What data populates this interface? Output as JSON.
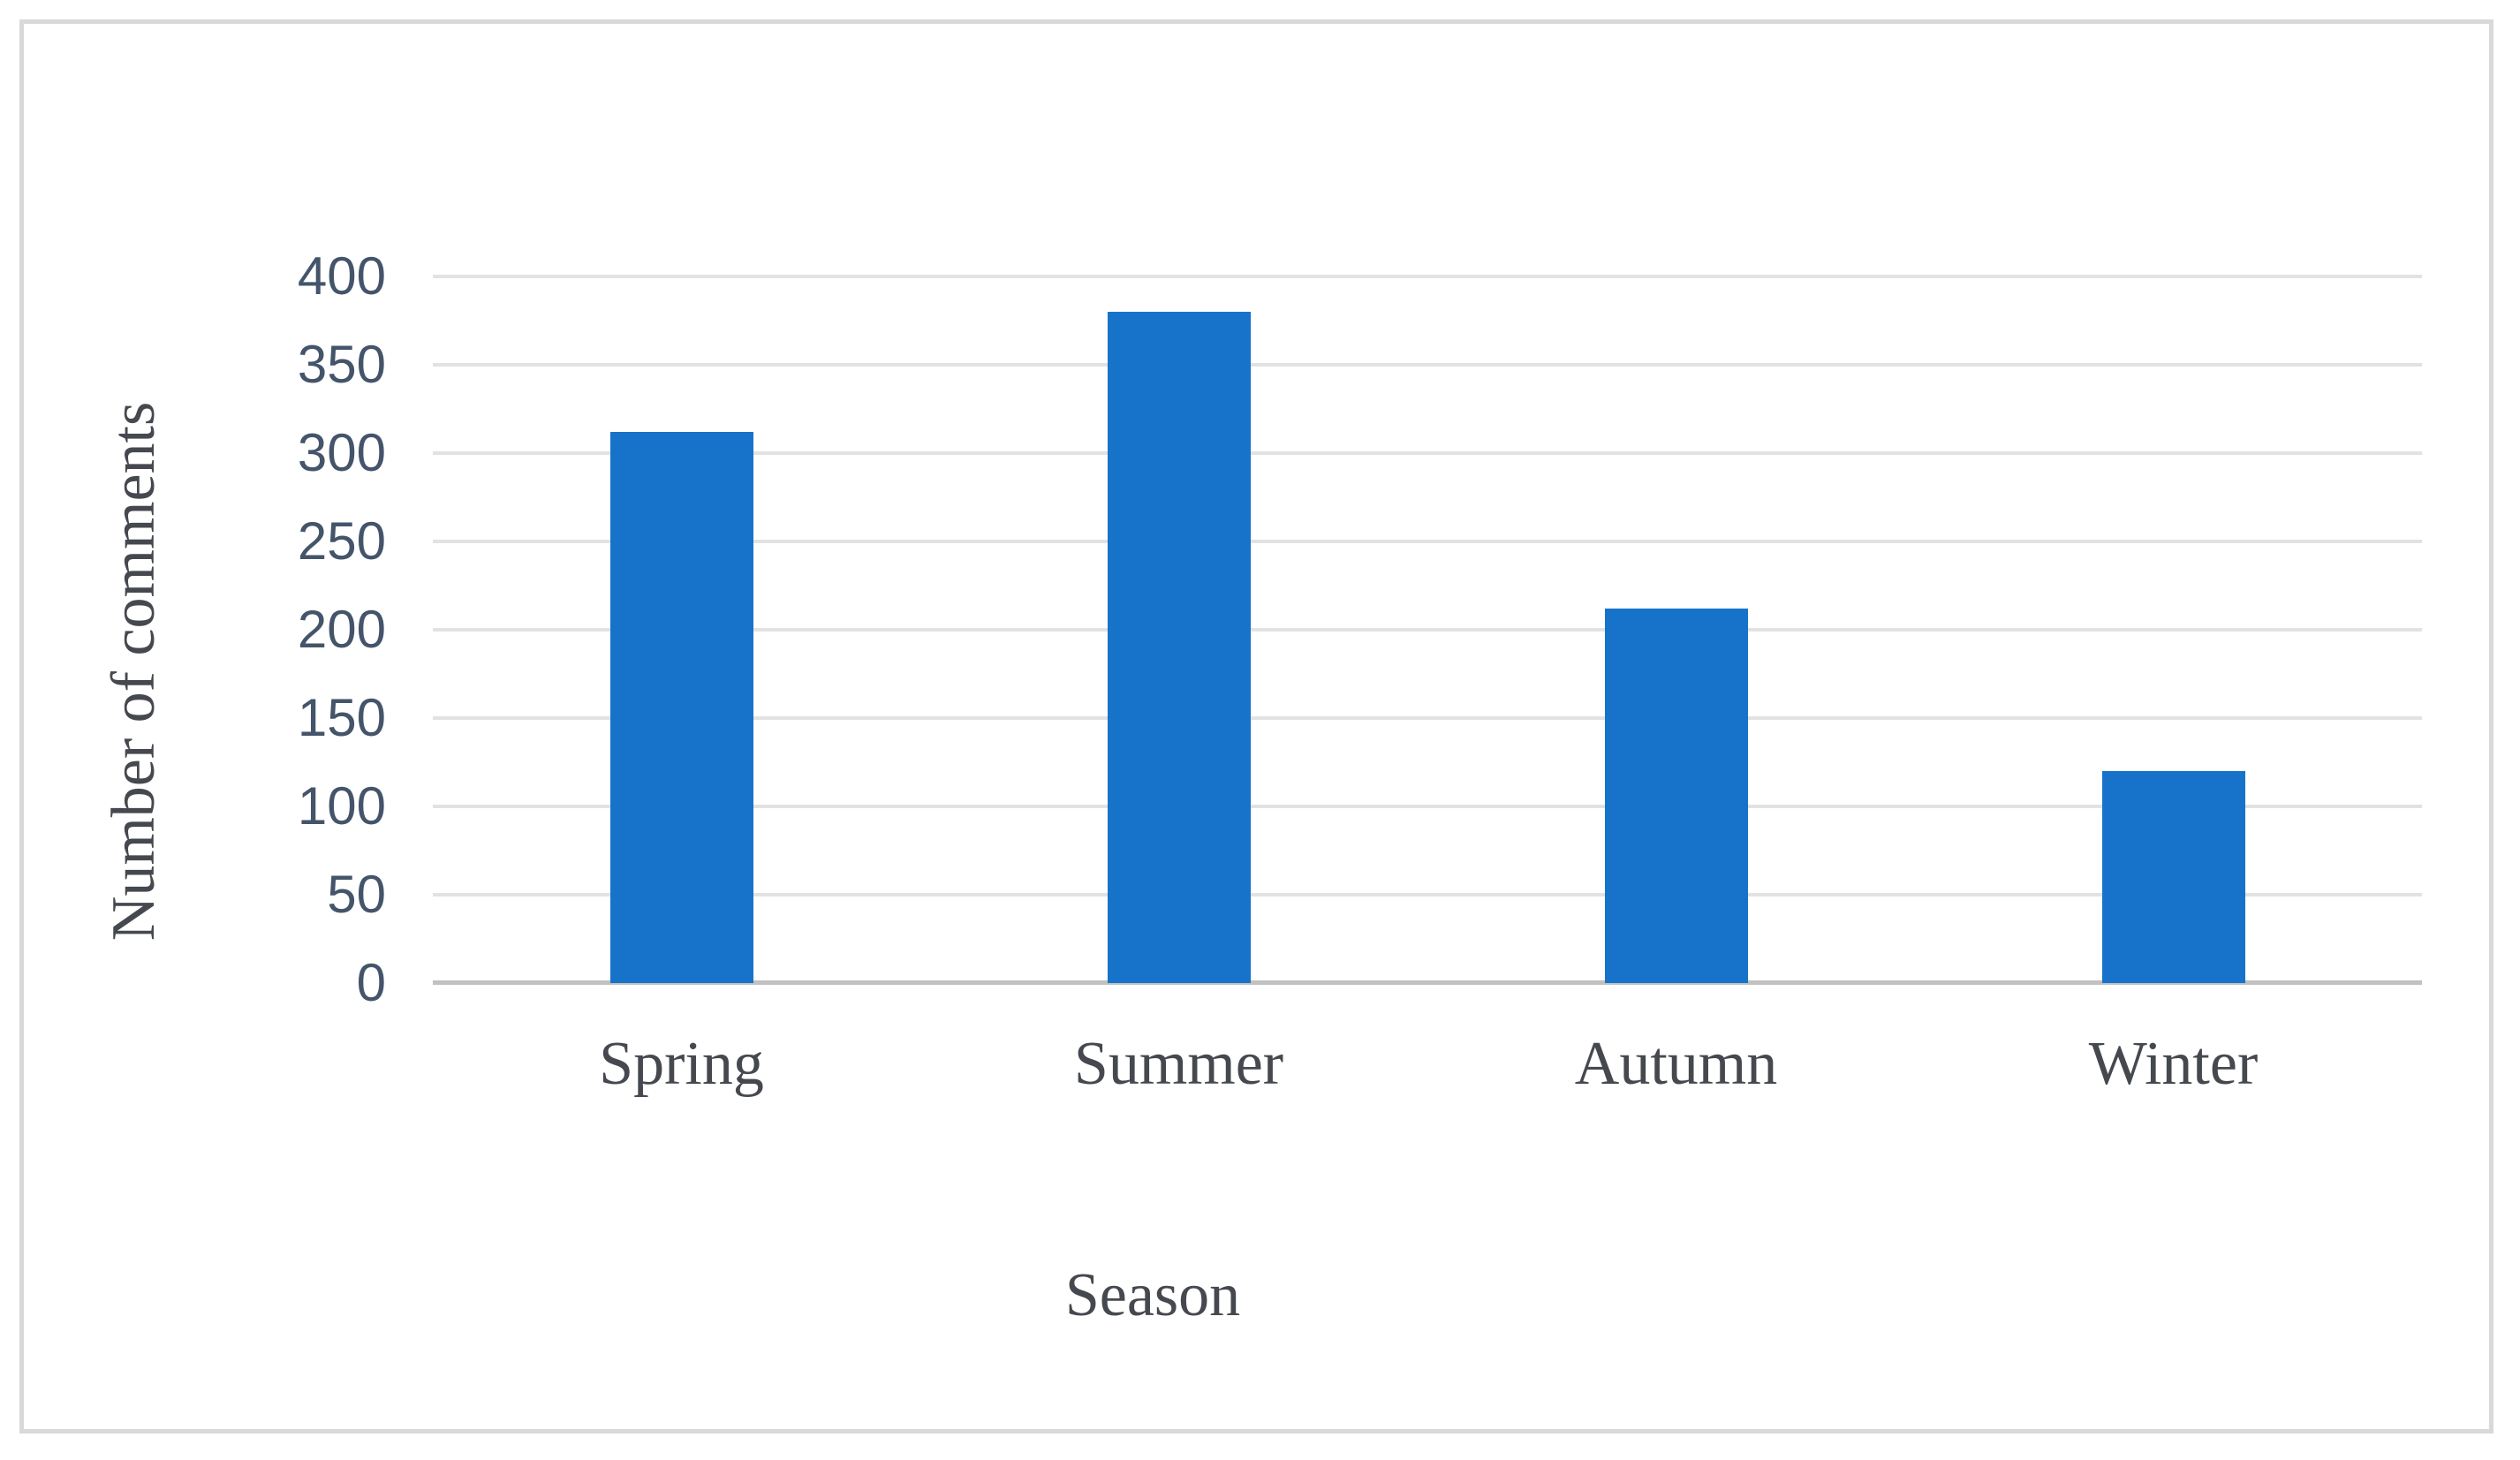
{
  "figure": {
    "background": "#ffffff",
    "border_color": "#d9d9d9"
  },
  "chart_data": {
    "type": "bar",
    "title": "",
    "categories": [
      "Spring",
      "Summer",
      "Autumn",
      "Winter"
    ],
    "values": [
      312,
      380,
      212,
      120
    ],
    "xlabel": "Season",
    "ylabel": "Number of comments",
    "ylim": [
      0,
      400
    ],
    "yticks": [
      0,
      50,
      100,
      150,
      200,
      250,
      300,
      350,
      400
    ],
    "grid": true,
    "legend": false,
    "bar_color": "#1773c9",
    "gridline_color": "#e2e2e2",
    "axis_line_color": "#c1c1c1",
    "tick_label_color": "#44546a",
    "label_color": "#45494f"
  }
}
